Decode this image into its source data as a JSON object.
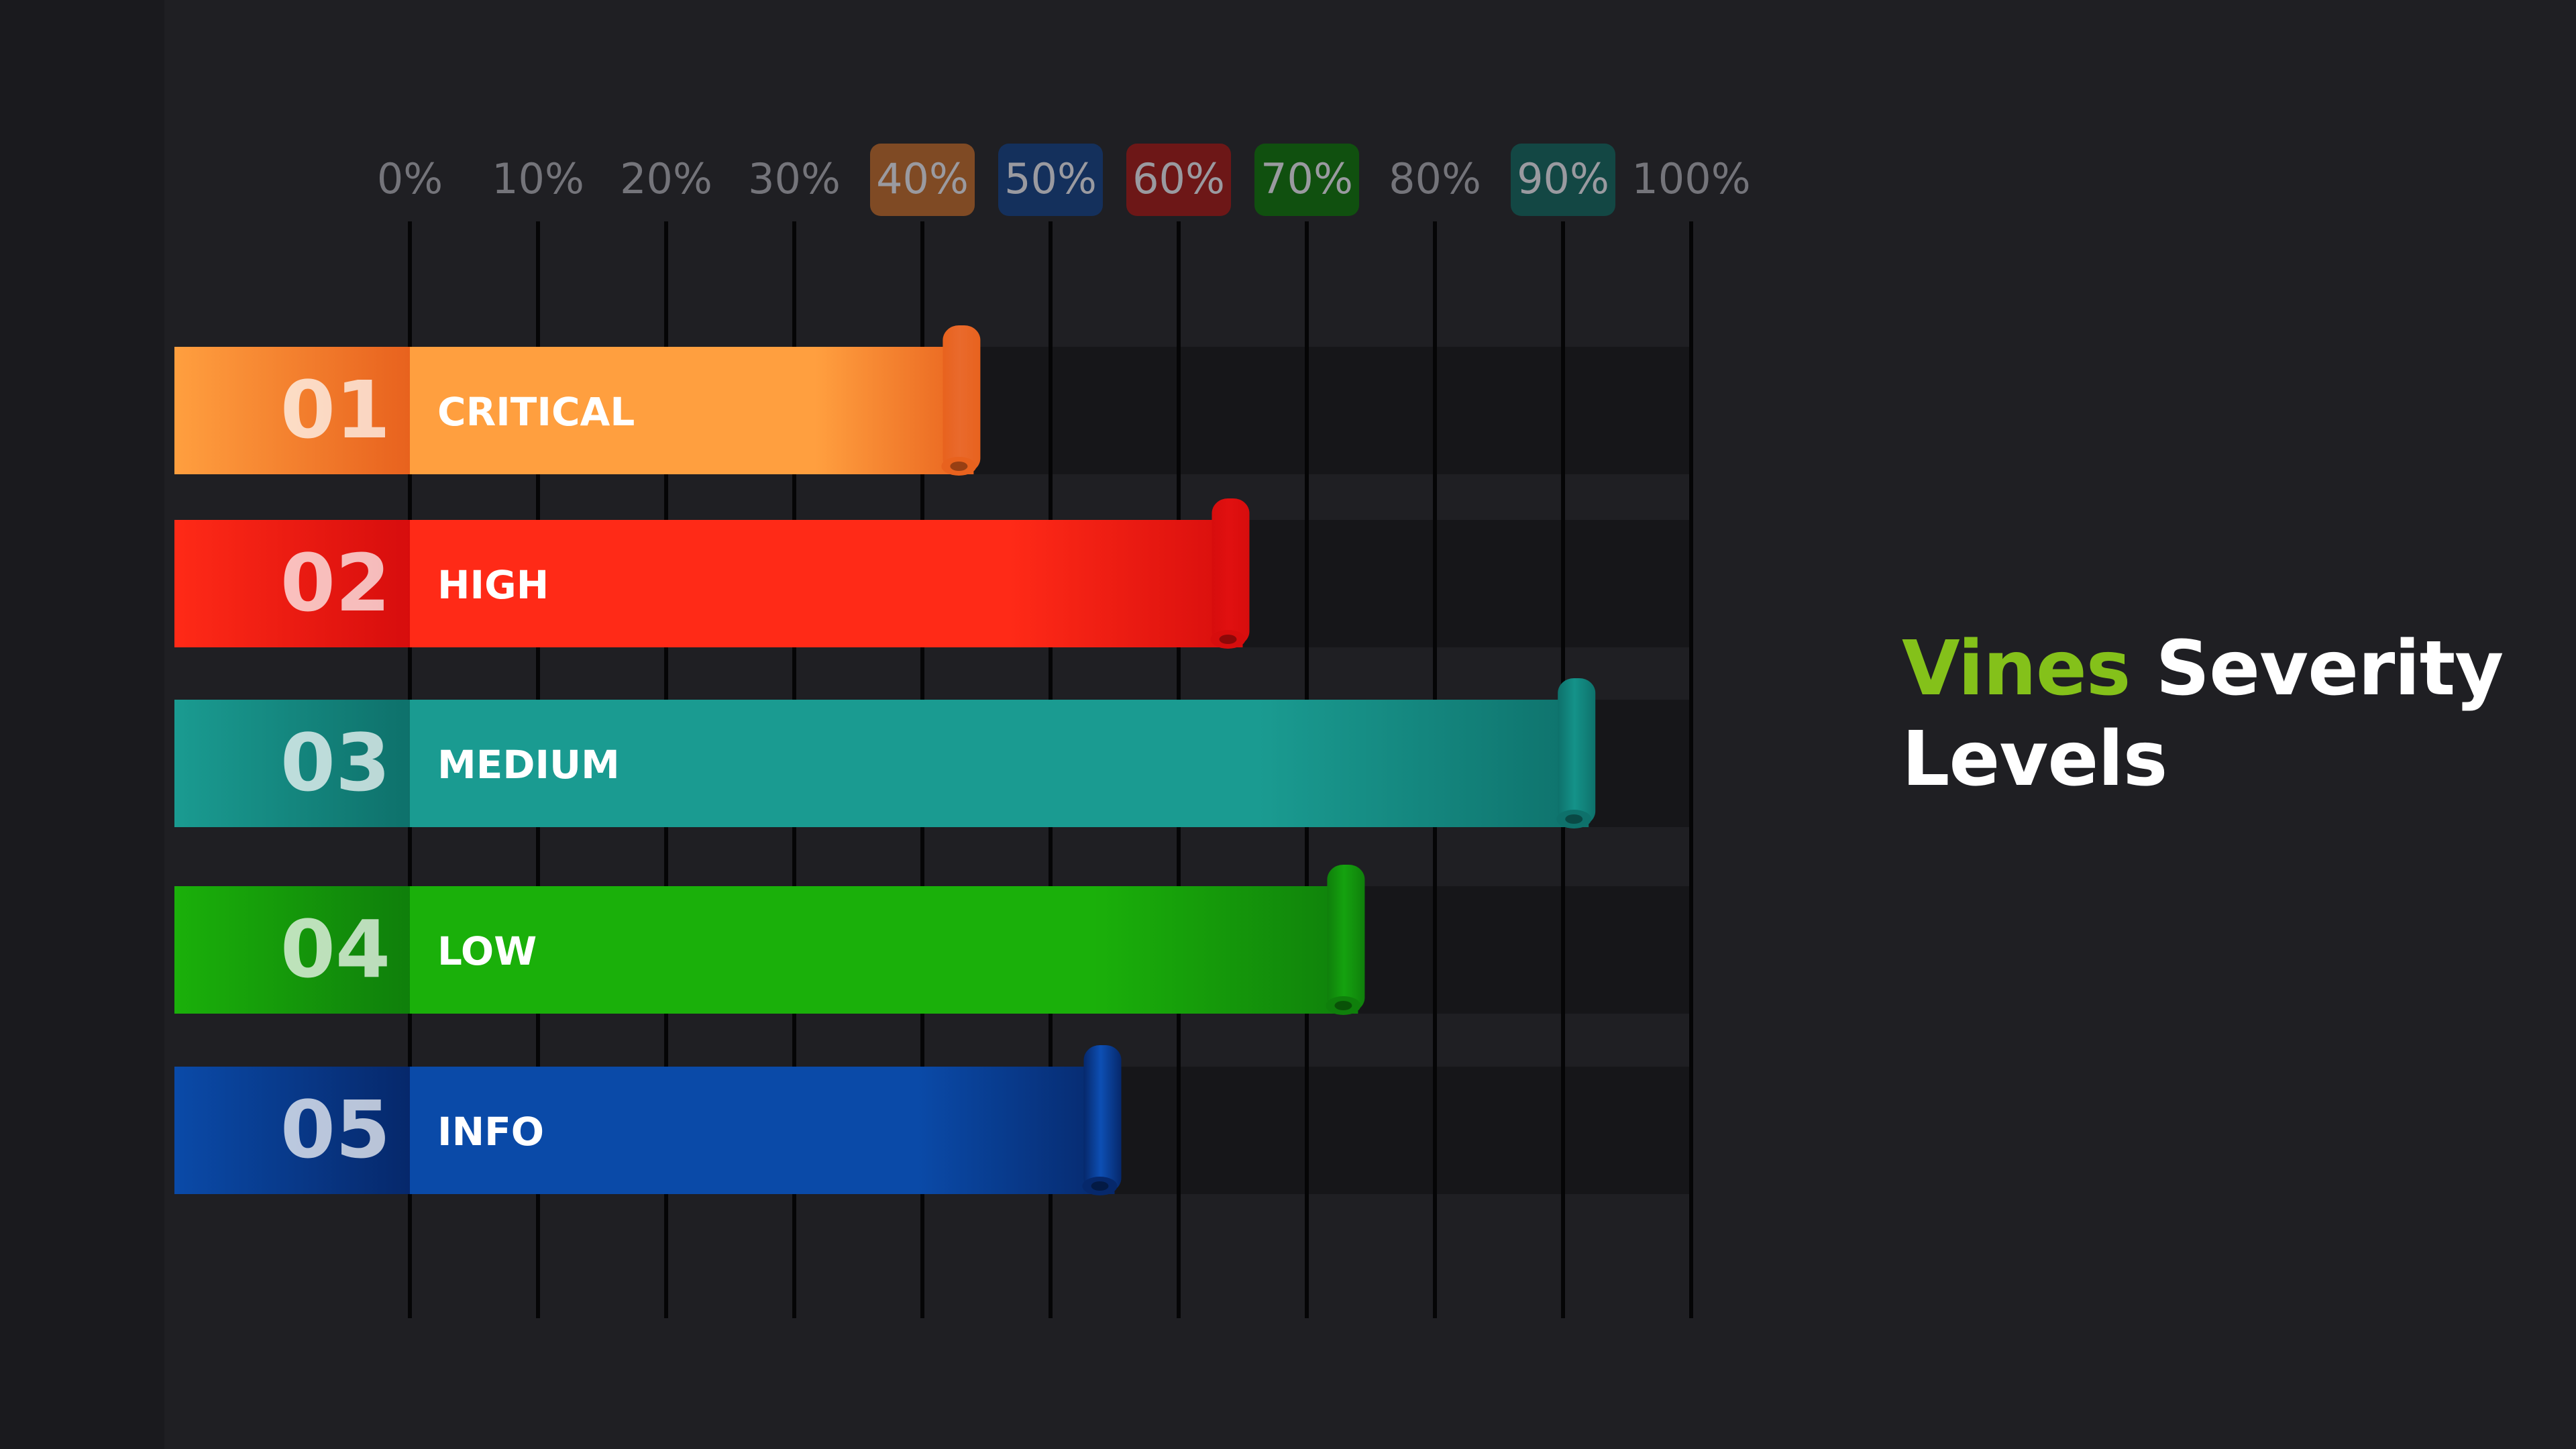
{
  "title": {
    "accent": "Vines",
    "rest": "Severity",
    "line2": "Levels",
    "accent_color": "#84c11a"
  },
  "chart_data": {
    "type": "bar",
    "orientation": "horizontal",
    "xlim": [
      0,
      100
    ],
    "x_ticks": [
      "0%",
      "10%",
      "20%",
      "30%",
      "40%",
      "50%",
      "60%",
      "70%",
      "80%",
      "90%",
      "100%"
    ],
    "tick_highlights": {
      "40%": "#7f4a24",
      "50%": "#14305c",
      "60%": "#6d1717",
      "70%": "#10500f",
      "90%": "#134744"
    },
    "grid": true,
    "categories": [
      "CRITICAL",
      "HIGH",
      "MEDIUM",
      "LOW",
      "INFO"
    ],
    "numbers": [
      "01",
      "02",
      "03",
      "04",
      "05"
    ],
    "values": [
      44,
      65,
      92,
      74,
      55
    ],
    "colors": [
      "#ff9f3f",
      "#ff2a17",
      "#1a9b91",
      "#1ab00a",
      "#0a4aa8"
    ],
    "dark_colors": [
      "#e8621e",
      "#d70d0d",
      "#0e716b",
      "#0f7f0b",
      "#06286b"
    ],
    "cap_colors": [
      "#e96a2c",
      "#e11010",
      "#149289",
      "#15a20f",
      "#0d4fb4"
    ]
  }
}
